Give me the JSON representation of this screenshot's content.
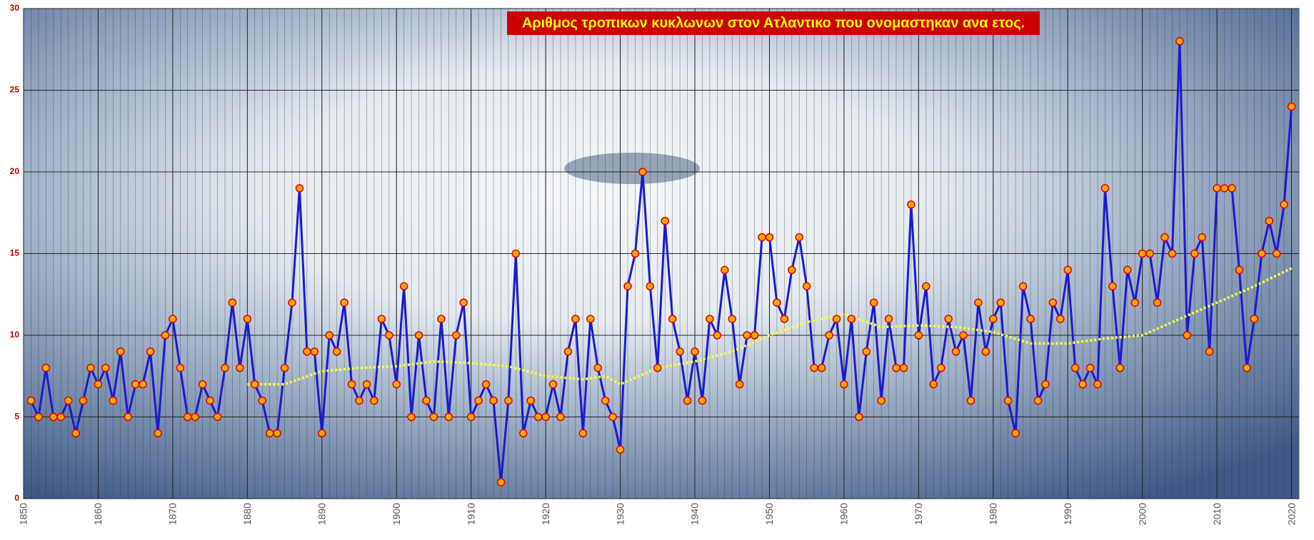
{
  "chart_data": {
    "type": "line",
    "title": "Αριθμος τροπικων κυκλωνων στον Ατλαντικο που ονομαστηκαν ανα ετος.",
    "x": [
      1851,
      1852,
      1853,
      1854,
      1855,
      1856,
      1857,
      1858,
      1859,
      1860,
      1861,
      1862,
      1863,
      1864,
      1865,
      1866,
      1867,
      1868,
      1869,
      1870,
      1871,
      1872,
      1873,
      1874,
      1875,
      1876,
      1877,
      1878,
      1879,
      1880,
      1881,
      1882,
      1883,
      1884,
      1885,
      1886,
      1887,
      1888,
      1889,
      1890,
      1891,
      1892,
      1893,
      1894,
      1895,
      1896,
      1897,
      1898,
      1899,
      1900,
      1901,
      1902,
      1903,
      1904,
      1905,
      1906,
      1907,
      1908,
      1909,
      1910,
      1911,
      1912,
      1913,
      1914,
      1915,
      1916,
      1917,
      1918,
      1919,
      1920,
      1921,
      1922,
      1923,
      1924,
      1925,
      1926,
      1927,
      1928,
      1929,
      1930,
      1931,
      1932,
      1933,
      1934,
      1935,
      1936,
      1937,
      1938,
      1939,
      1940,
      1941,
      1942,
      1943,
      1944,
      1945,
      1946,
      1947,
      1948,
      1949,
      1950,
      1951,
      1952,
      1953,
      1954,
      1955,
      1956,
      1957,
      1958,
      1959,
      1960,
      1961,
      1962,
      1963,
      1964,
      1965,
      1966,
      1967,
      1968,
      1969,
      1970,
      1971,
      1972,
      1973,
      1974,
      1975,
      1976,
      1977,
      1978,
      1979,
      1980,
      1981,
      1982,
      1983,
      1984,
      1985,
      1986,
      1987,
      1988,
      1989,
      1990,
      1991,
      1992,
      1993,
      1994,
      1995,
      1996,
      1997,
      1998,
      1999,
      2000,
      2001,
      2002,
      2003,
      2004,
      2005,
      2006,
      2007,
      2008,
      2009,
      2010,
      2011,
      2012,
      2013,
      2014,
      2015,
      2016,
      2017,
      2018,
      2019,
      2020
    ],
    "series": [
      {
        "color": "#1a1ad0",
        "marker_fill": "#ffa500",
        "marker_stroke": "#e00000",
        "values": [
          6,
          5,
          8,
          5,
          5,
          6,
          4,
          6,
          8,
          7,
          8,
          6,
          9,
          5,
          7,
          7,
          9,
          4,
          10,
          11,
          8,
          5,
          5,
          7,
          6,
          5,
          8,
          12,
          8,
          11,
          7,
          6,
          4,
          4,
          8,
          12,
          19,
          9,
          9,
          4,
          10,
          9,
          12,
          7,
          6,
          7,
          6,
          11,
          10,
          7,
          13,
          5,
          10,
          6,
          5,
          11,
          5,
          10,
          12,
          5,
          6,
          7,
          6,
          1,
          6,
          15,
          4,
          6,
          5,
          5,
          7,
          5,
          9,
          11,
          4,
          11,
          8,
          6,
          5,
          3,
          13,
          15,
          20,
          13,
          8,
          17,
          11,
          9,
          6,
          9,
          6,
          11,
          10,
          14,
          11,
          7,
          10,
          10,
          16,
          16,
          12,
          11,
          14,
          16,
          13,
          8,
          8,
          10,
          11,
          7,
          11,
          5,
          9,
          12,
          6,
          11,
          8,
          8,
          18,
          10,
          13,
          7,
          8,
          11,
          9,
          10,
          6,
          12,
          9,
          11,
          12,
          6,
          4,
          13,
          11,
          6,
          7,
          12,
          11,
          14,
          8,
          7,
          8,
          7,
          19,
          13,
          8,
          14,
          12,
          15,
          15,
          12,
          16,
          15,
          28,
          10,
          15,
          16,
          9,
          19,
          19,
          19,
          14,
          8,
          11,
          15,
          17,
          15,
          18,
          24
        ]
      },
      {
        "color": "#ffff33",
        "x": [
          1880,
          1885,
          1890,
          1895,
          1900,
          1905,
          1910,
          1915,
          1920,
          1925,
          1928,
          1930,
          1935,
          1940,
          1945,
          1950,
          1955,
          1960,
          1965,
          1970,
          1975,
          1980,
          1985,
          1990,
          1995,
          2000,
          2005,
          2010,
          2015,
          2020
        ],
        "values": [
          7.0,
          7.0,
          7.8,
          8.0,
          8.1,
          8.4,
          8.3,
          8.1,
          7.5,
          7.3,
          7.5,
          7.0,
          8.0,
          8.4,
          9.0,
          10.0,
          10.8,
          11.3,
          10.5,
          10.6,
          10.5,
          10.2,
          9.5,
          9.5,
          9.8,
          10.0,
          11.0,
          12.0,
          13.0,
          14.1
        ]
      }
    ],
    "xlim": [
      1850,
      2021
    ],
    "xticks": [
      1850,
      1860,
      1870,
      1880,
      1890,
      1900,
      1910,
      1920,
      1930,
      1940,
      1950,
      1960,
      1970,
      1980,
      1990,
      2000,
      2010,
      2020
    ],
    "ylim": [
      0,
      30
    ],
    "yticks": [
      0,
      5,
      10,
      15,
      20,
      25,
      30
    ],
    "grid": true
  }
}
